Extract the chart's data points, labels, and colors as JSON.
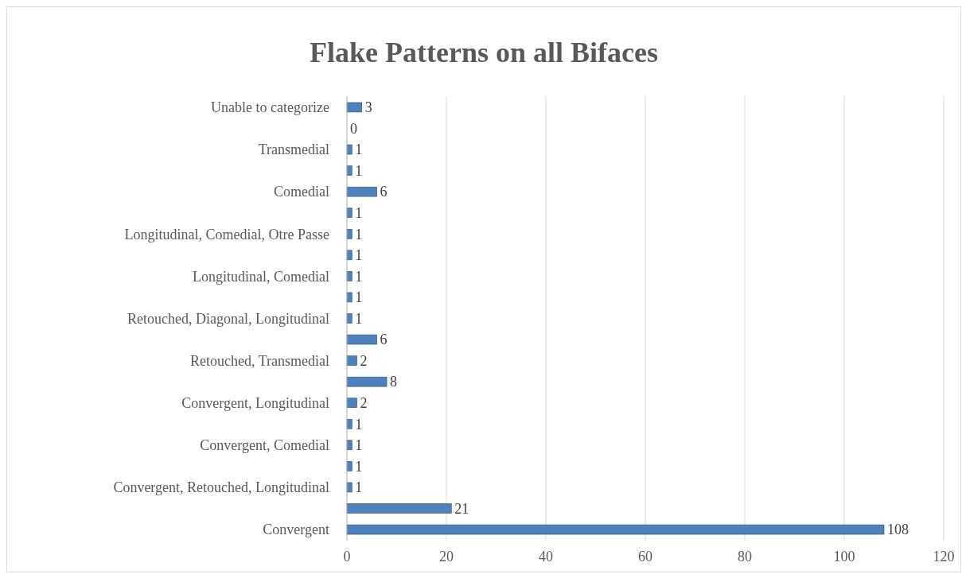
{
  "chart_data": {
    "type": "bar",
    "orientation": "horizontal",
    "title": "Flake Patterns on all Bifaces",
    "categories": [
      "Unable to categorize",
      null,
      "Transmedial",
      null,
      "Comedial",
      null,
      "Longitudinal, Comedial, Otre Passe",
      null,
      "Longitudinal, Comedial",
      null,
      "Retouched, Diagonal, Longitudinal",
      null,
      "Retouched, Transmedial",
      null,
      "Convergent, Longitudinal",
      null,
      "Convergent, Comedial",
      null,
      "Convergent, Retouched, Longitudinal",
      null,
      "Convergent"
    ],
    "values": [
      3,
      0,
      1,
      1,
      6,
      1,
      1,
      1,
      1,
      1,
      1,
      6,
      2,
      8,
      2,
      1,
      1,
      1,
      1,
      21,
      108
    ],
    "color": "#4f81bd",
    "xlim": [
      0,
      120
    ],
    "xticks": [
      0,
      20,
      40,
      60,
      80,
      100,
      120
    ],
    "grid": "x",
    "data_labels": true
  }
}
